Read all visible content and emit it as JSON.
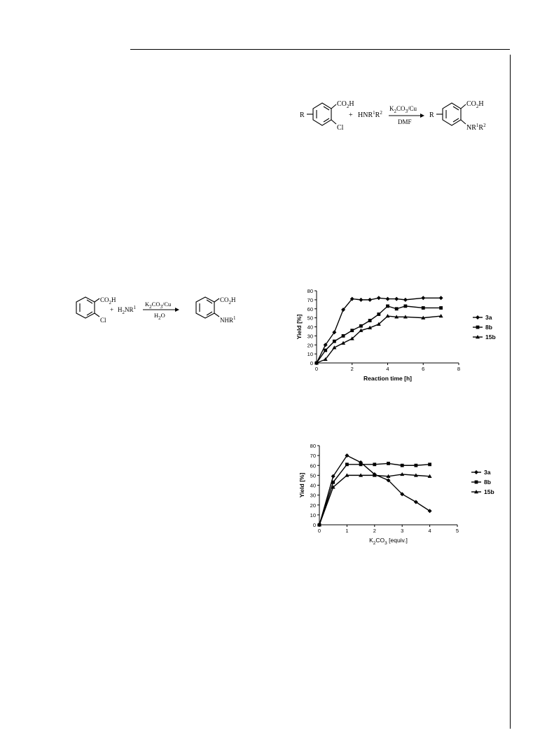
{
  "scheme_top": {
    "reactant_cooh": "CO2H",
    "reactant_cl": "Cl",
    "reactant_r": "R",
    "plus": "+",
    "amine": "HNR1R2",
    "reagent_above": "K2CO3/Cu",
    "reagent_below": "DMF",
    "product_cooh": "CO2H",
    "product_r": "R",
    "product_amine": "NR1R2"
  },
  "scheme_left": {
    "reactant_cooh": "CO2H",
    "reactant_cl": "Cl",
    "plus": "+",
    "amine": "H2NR1",
    "reagent_above": "K2CO3/Cu",
    "reagent_below": "H2O",
    "product_cooh": "CO2H",
    "product_amine": "NHR1"
  },
  "chart_data": [
    {
      "type": "line",
      "xlabel": "Reaction time [h]",
      "ylabel": "Yield [%]",
      "xlim": [
        0,
        8
      ],
      "ylim": [
        0,
        80
      ],
      "xticks": [
        0,
        2,
        4,
        6,
        8
      ],
      "yticks": [
        0,
        10,
        20,
        30,
        40,
        50,
        60,
        70,
        80
      ],
      "legend_position": "right",
      "grid": false,
      "series": [
        {
          "name": "3a",
          "marker": "diamond",
          "x": [
            0,
            0.5,
            1,
            1.5,
            2,
            2.5,
            3,
            3.5,
            4,
            4.5,
            5,
            6,
            7
          ],
          "y": [
            0,
            20,
            34,
            59,
            71,
            70,
            70,
            72,
            71,
            71,
            70,
            72,
            72
          ]
        },
        {
          "name": "8b",
          "marker": "square",
          "x": [
            0,
            0.5,
            1,
            1.5,
            2,
            2.5,
            3,
            3.5,
            4,
            4.5,
            5,
            6,
            7
          ],
          "y": [
            0,
            14,
            24,
            30,
            36,
            41,
            47,
            54,
            63,
            60,
            63,
            61,
            61
          ]
        },
        {
          "name": "15b",
          "marker": "triangle",
          "x": [
            0,
            0.5,
            1,
            1.5,
            2,
            2.5,
            3,
            3.5,
            4,
            4.5,
            5,
            6,
            7
          ],
          "y": [
            0,
            4,
            17,
            22,
            27,
            36,
            39,
            43,
            52,
            51,
            51,
            50,
            52
          ]
        }
      ]
    },
    {
      "type": "line",
      "xlabel": "K2CO3 [equiv.]",
      "ylabel": "Yield [%]",
      "xlim": [
        0,
        5
      ],
      "ylim": [
        0,
        80
      ],
      "xticks": [
        0,
        1,
        2,
        3,
        4,
        5
      ],
      "yticks": [
        0,
        10,
        20,
        30,
        40,
        50,
        60,
        70,
        80
      ],
      "legend_position": "right",
      "grid": false,
      "series": [
        {
          "name": "3a",
          "marker": "diamond",
          "x": [
            0,
            0.5,
            1,
            1.5,
            2,
            2.5,
            3,
            3.5,
            4
          ],
          "y": [
            0,
            49,
            70,
            63,
            51,
            45,
            31,
            23,
            14
          ]
        },
        {
          "name": "8b",
          "marker": "square",
          "x": [
            0,
            0.5,
            1,
            1.5,
            2,
            2.5,
            3,
            3.5,
            4
          ],
          "y": [
            0,
            43,
            61,
            61,
            61,
            62,
            60,
            60,
            61
          ]
        },
        {
          "name": "15b",
          "marker": "triangle",
          "x": [
            0,
            0.5,
            1,
            1.5,
            2,
            2.5,
            3,
            3.5,
            4
          ],
          "y": [
            0,
            38,
            50,
            50,
            50,
            49,
            51,
            50,
            49
          ]
        }
      ]
    }
  ]
}
